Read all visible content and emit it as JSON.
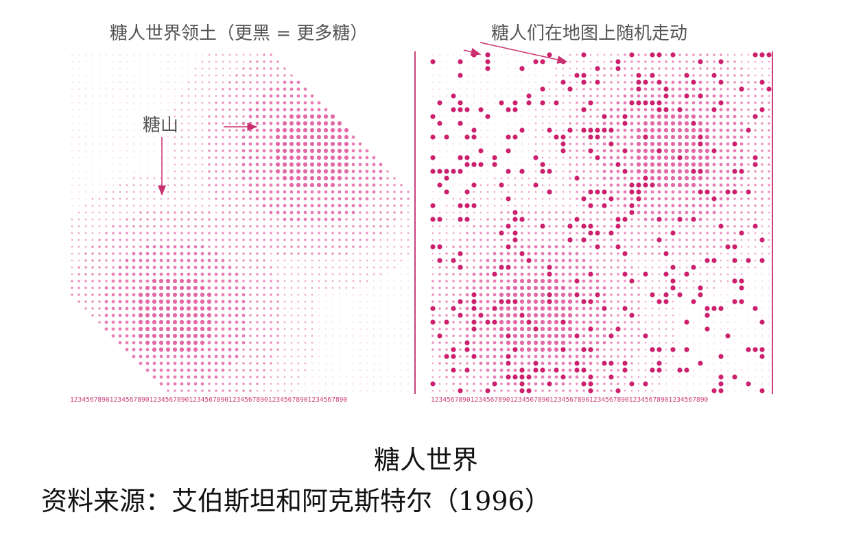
{
  "labels": {
    "left_panel_title": "糖人世界领土（更黑 = 更多糖）",
    "right_panel_title": "糖人们在地图上随机走动",
    "sugar_mountain": "糖山"
  },
  "axis": {
    "left_numbers": "1234567890123456789012345678901234567890123456789012345678901234567890",
    "right_numbers": "1234567890123456789012345678901234567890123456789012345678901234567890"
  },
  "caption": {
    "title": "糖人世界",
    "source": "资料来源：艾伯斯坦和阿克斯特尔（1996）"
  },
  "colors": {
    "sugar": "#d9368a",
    "agent": "#cc1f6d",
    "axis": "#cc3f7a",
    "arrow": "#c9306f"
  }
}
